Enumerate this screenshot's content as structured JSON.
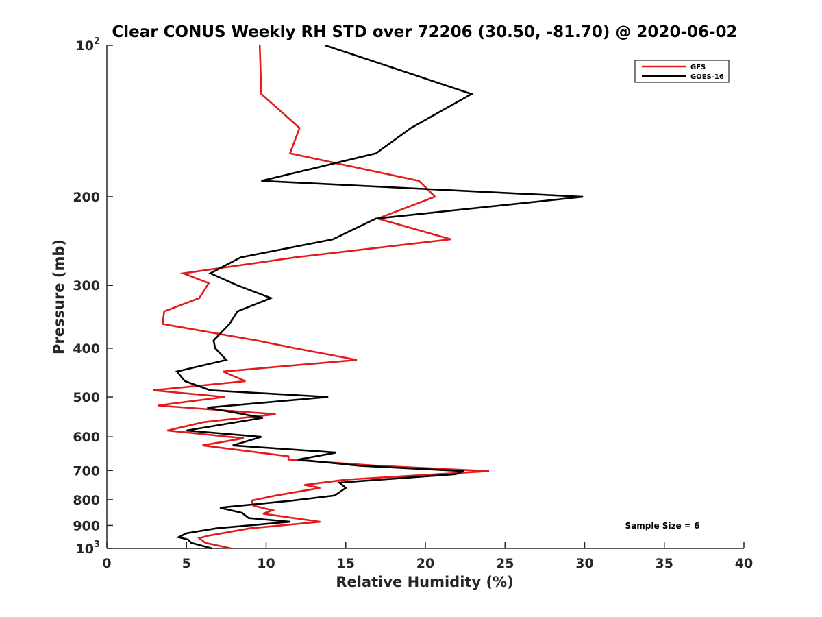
{
  "chart_data": {
    "type": "line",
    "title": "Clear CONUS Weekly RH STD over 72206 (30.50, -81.70) @ 2020-06-02",
    "xlabel": "Relative Humidity (%)",
    "ylabel": "Pressure (mb)",
    "xlim": [
      0,
      40
    ],
    "ylim": [
      100,
      1000
    ],
    "y_scale": "log",
    "y_reversed": true,
    "grid": false,
    "legend_placement": "top-right",
    "annotation": "Sample Size = 6",
    "x_ticks": [
      "0",
      "5",
      "10",
      "15",
      "20",
      "25",
      "30",
      "35",
      "40"
    ],
    "y_ticks": [
      {
        "value": 100,
        "base": "10",
        "exp": "2"
      },
      {
        "value": 200,
        "label": "200"
      },
      {
        "value": 300,
        "label": "300"
      },
      {
        "value": 400,
        "label": "400"
      },
      {
        "value": 500,
        "label": "500"
      },
      {
        "value": 600,
        "label": "600"
      },
      {
        "value": 700,
        "label": "700"
      },
      {
        "value": 800,
        "label": "800"
      },
      {
        "value": 900,
        "label": "900"
      },
      {
        "value": 1000,
        "base": "10",
        "exp": "3"
      }
    ],
    "series": [
      {
        "name": "GFS",
        "color": "#e41a1a",
        "points": [
          [
            9.6,
            100
          ],
          [
            9.7,
            125
          ],
          [
            12.1,
            146
          ],
          [
            11.5,
            164
          ],
          [
            19.6,
            186
          ],
          [
            20.6,
            200
          ],
          [
            17.0,
            221
          ],
          [
            21.6,
            243
          ],
          [
            11.8,
            264
          ],
          [
            4.8,
            284
          ],
          [
            6.4,
            297
          ],
          [
            5.8,
            318
          ],
          [
            3.6,
            338
          ],
          [
            3.5,
            358
          ],
          [
            9.4,
            386
          ],
          [
            11.8,
            400
          ],
          [
            15.7,
            422
          ],
          [
            7.3,
            445
          ],
          [
            8.7,
            465
          ],
          [
            2.9,
            485
          ],
          [
            7.4,
            500
          ],
          [
            3.2,
            520
          ],
          [
            10.6,
            541
          ],
          [
            6.1,
            561
          ],
          [
            3.8,
            583
          ],
          [
            8.6,
            604
          ],
          [
            6.0,
            624
          ],
          [
            11.4,
            656
          ],
          [
            11.4,
            666
          ],
          [
            17.0,
            685
          ],
          [
            24.0,
            702
          ],
          [
            15.0,
            730
          ],
          [
            12.4,
            748
          ],
          [
            13.4,
            758
          ],
          [
            10.6,
            785
          ],
          [
            9.1,
            803
          ],
          [
            9.2,
            822
          ],
          [
            10.4,
            840
          ],
          [
            9.8,
            853
          ],
          [
            13.4,
            885
          ],
          [
            9.0,
            912
          ],
          [
            6.4,
            943
          ],
          [
            5.8,
            954
          ],
          [
            6.2,
            975
          ],
          [
            7.8,
            1000
          ]
        ]
      },
      {
        "name": "GOES-16",
        "color": "#000000",
        "points": [
          [
            13.7,
            100
          ],
          [
            22.9,
            125
          ],
          [
            19.1,
            146
          ],
          [
            16.9,
            164
          ],
          [
            9.7,
            186
          ],
          [
            29.9,
            200
          ],
          [
            16.9,
            221
          ],
          [
            14.2,
            243
          ],
          [
            8.4,
            264
          ],
          [
            6.5,
            284
          ],
          [
            8.2,
            300
          ],
          [
            10.3,
            318
          ],
          [
            8.2,
            338
          ],
          [
            7.7,
            358
          ],
          [
            6.7,
            386
          ],
          [
            6.8,
            400
          ],
          [
            7.5,
            422
          ],
          [
            4.4,
            445
          ],
          [
            4.9,
            465
          ],
          [
            6.5,
            485
          ],
          [
            13.9,
            500
          ],
          [
            6.3,
            525
          ],
          [
            9.8,
            550
          ],
          [
            5.0,
            583
          ],
          [
            9.7,
            600
          ],
          [
            7.9,
            624
          ],
          [
            14.4,
            645
          ],
          [
            12.0,
            666
          ],
          [
            15.9,
            685
          ],
          [
            22.4,
            702
          ],
          [
            21.9,
            712
          ],
          [
            14.6,
            740
          ],
          [
            15.0,
            758
          ],
          [
            14.3,
            785
          ],
          [
            11.7,
            803
          ],
          [
            7.1,
            830
          ],
          [
            8.5,
            850
          ],
          [
            8.9,
            870
          ],
          [
            11.5,
            885
          ],
          [
            6.9,
            912
          ],
          [
            5.0,
            933
          ],
          [
            4.5,
            950
          ],
          [
            5.1,
            960
          ],
          [
            5.3,
            975
          ],
          [
            6.6,
            1000
          ]
        ]
      }
    ]
  }
}
